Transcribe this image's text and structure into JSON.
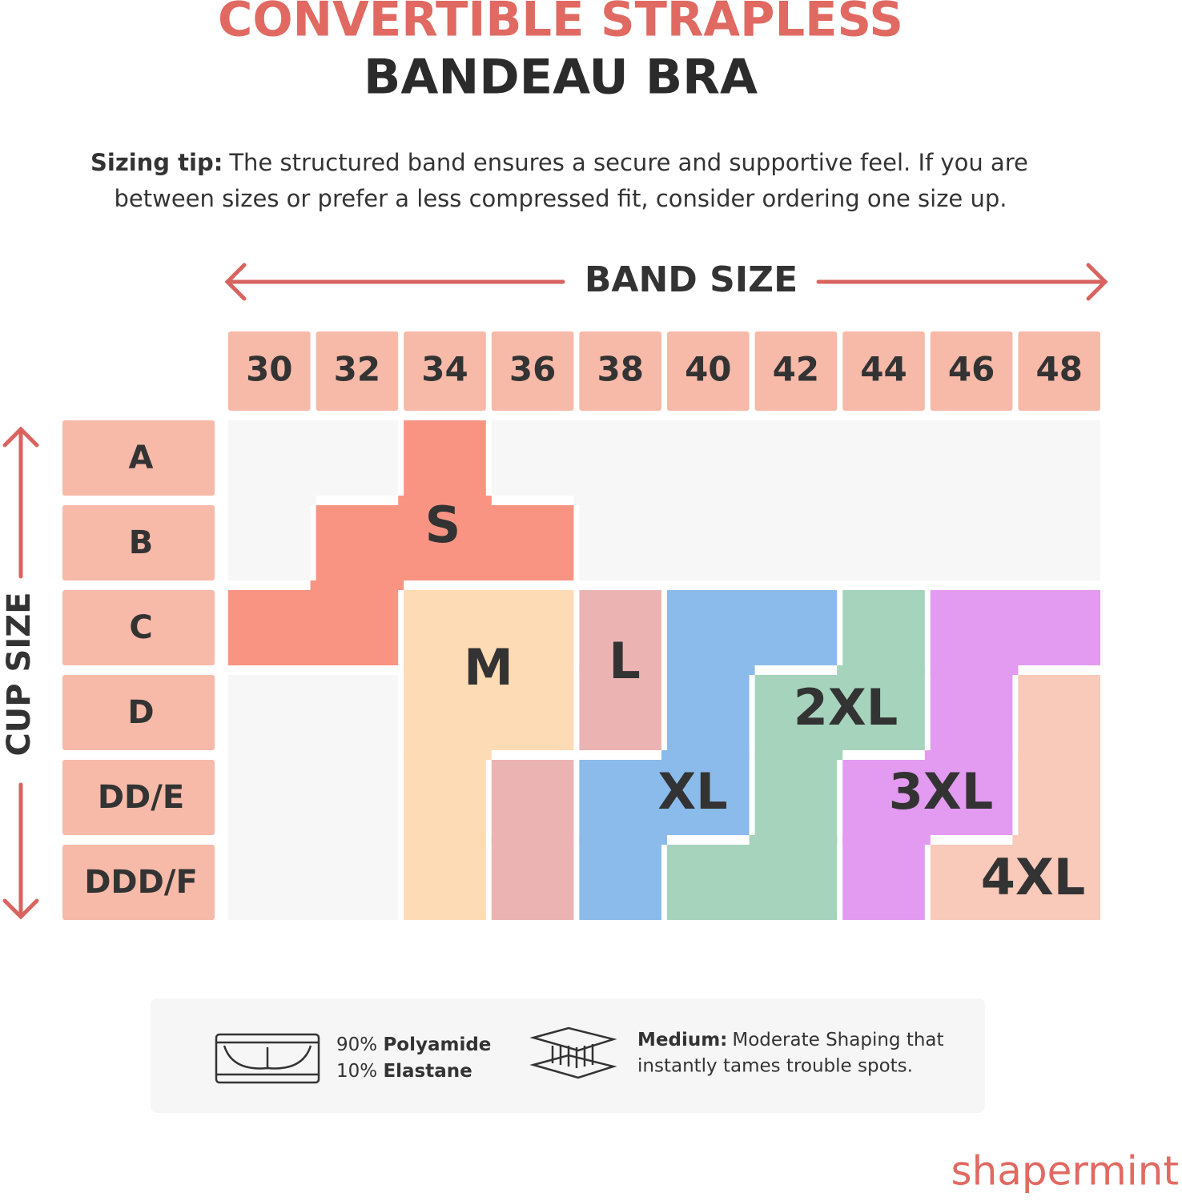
{
  "header": {
    "title_line1": "CONVERTIBLE STRAPLESS",
    "title_line2": "BANDEAU BRA"
  },
  "tip": {
    "label": "Sizing tip:",
    "line1": "The structured band ensures a secure and supportive feel. If you are",
    "line2": "between sizes or prefer a less compressed fit, consider ordering one size up."
  },
  "size_chart": {
    "band_label": "BAND SIZE",
    "cup_label": "CUP SIZE",
    "band_sizes": [
      "30",
      "32",
      "34",
      "36",
      "38",
      "40",
      "42",
      "44",
      "46",
      "48"
    ],
    "cup_sizes": [
      "A",
      "B",
      "C",
      "D",
      "DD/E",
      "DDD/F"
    ],
    "regions": [
      {
        "label": "S",
        "color": "#f99482",
        "cells": [
          [
            2,
            0
          ],
          [
            1,
            1
          ],
          [
            2,
            1
          ],
          [
            3,
            1
          ],
          [
            0,
            2
          ],
          [
            1,
            2
          ]
        ]
      },
      {
        "label": "M",
        "color": "#fddbb5",
        "cells": [
          [
            2,
            2
          ],
          [
            3,
            2
          ],
          [
            2,
            3
          ],
          [
            3,
            3
          ],
          [
            2,
            4
          ],
          [
            2,
            5
          ]
        ]
      },
      {
        "label": "L",
        "color": "#ecb3b3",
        "cells": [
          [
            4,
            2
          ],
          [
            4,
            3
          ],
          [
            3,
            4
          ],
          [
            3,
            5
          ]
        ]
      },
      {
        "label": "XL",
        "color": "#8bbbea",
        "cells": [
          [
            5,
            2
          ],
          [
            6,
            2
          ],
          [
            5,
            3
          ],
          [
            4,
            4
          ],
          [
            5,
            4
          ],
          [
            4,
            5
          ]
        ]
      },
      {
        "label": "2XL",
        "color": "#a6d3bc",
        "cells": [
          [
            7,
            2
          ],
          [
            6,
            3
          ],
          [
            7,
            3
          ],
          [
            6,
            4
          ],
          [
            5,
            5
          ],
          [
            6,
            5
          ]
        ]
      },
      {
        "label": "3XL",
        "color": "#e29bf0",
        "cells": [
          [
            8,
            2
          ],
          [
            9,
            2
          ],
          [
            8,
            3
          ],
          [
            7,
            4
          ],
          [
            8,
            4
          ],
          [
            7,
            5
          ]
        ]
      },
      {
        "label": "4XL",
        "color": "#f9c9ba",
        "cells": [
          [
            9,
            3
          ],
          [
            9,
            4
          ],
          [
            8,
            5
          ],
          [
            9,
            5
          ]
        ]
      }
    ]
  },
  "details": {
    "fabric_line1_pct": "90%",
    "fabric_line1_name": "Polyamide",
    "fabric_line2_pct": "10%",
    "fabric_line2_name": "Elastane",
    "compression_label": "Medium:",
    "compression_line1": "Moderate Shaping that",
    "compression_line2": "instantly tames trouble spots."
  },
  "brand": "shapermint"
}
